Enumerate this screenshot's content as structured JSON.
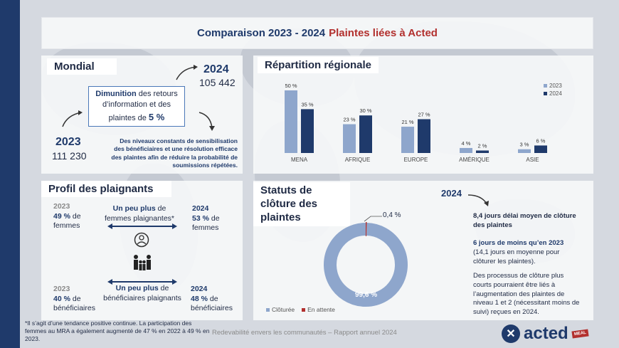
{
  "title": {
    "part1": "Comparaison 2023 - 2024",
    "part2": "Plaintes liées à Acted"
  },
  "mondial": {
    "heading": "Mondial",
    "year_2024": "2024",
    "count_2024": "105 442",
    "year_2023": "2023",
    "count_2023": "111 230",
    "box_bold": "Dimunition",
    "box_text": " des retours d’information et des plaintes de ",
    "box_pct": "5 %",
    "note": "Des niveaux constants de sensibilisation des bénéficiaires et une résolution efficace des plaintes afin de réduire la probabilité de soumissions répétées."
  },
  "regional": {
    "heading": "Répartition régionale",
    "legend_2023": "2023",
    "legend_2024": "2024"
  },
  "chart_data": {
    "type": "bar",
    "categories": [
      "MENA",
      "AFRIQUE",
      "EUROPE",
      "AMÉRIQUE",
      "ASIE"
    ],
    "series": [
      {
        "name": "2023",
        "values": [
          50,
          23,
          21,
          4,
          3
        ],
        "labels": [
          "50 %",
          "23 %",
          "21 %",
          "4 %",
          "3 %"
        ],
        "color": "#8ea6cc"
      },
      {
        "name": "2024",
        "values": [
          35,
          30,
          27,
          2,
          6
        ],
        "labels": [
          "35 %",
          "30 %",
          "27 %",
          "2 %",
          "6 %"
        ],
        "color": "#1f3a6b"
      }
    ],
    "ylim": [
      0,
      50
    ],
    "legend": "top-right"
  },
  "profil": {
    "heading": "Profil des plaignants",
    "women_2023_year": "2023",
    "women_2023_pct": "49 %",
    "women_2023_rest": " de femmes",
    "women_2024_year": "2024",
    "women_2024_pct": "53 %",
    "women_2024_rest": " de femmes",
    "women_mid_bold": "Un peu plus",
    "women_mid_rest": " de femmes plaignantes*",
    "benef_2023_year": "2023",
    "benef_2023_pct": "40 %",
    "benef_2023_rest": " de bénéficiaires",
    "benef_2024_year": "2024",
    "benef_2024_pct": "48 %",
    "benef_2024_rest": " de bénéficiaires",
    "benef_mid_bold": "Un peu plus",
    "benef_mid_rest": " de bénéficiaires plaignants"
  },
  "statuts": {
    "heading": "Statuts de clôture des plaintes",
    "pending_label": "0,4 %",
    "closed_label": "99,6 %",
    "legend_closed": "Clôturée",
    "legend_pending": "En attente",
    "color_closed": "#8ea6cc",
    "color_pending": "#b2302e",
    "year": "2024",
    "delay_bold": "8,4 jours délai moyen de clôture des plaintes",
    "less_bold": "6 jours de moins qu’en 2023",
    "less_rest": " (14,1 jours en moyenne pour clôturer les plaintes).",
    "process": "Des processus de clôture plus courts pourraient être liés à l’augmentation des plaintes de niveau 1 et 2 (nécessitant moins de suivi) reçues en 2024."
  },
  "closure_chart": {
    "type": "pie",
    "categories": [
      "Clôturée",
      "En attente"
    ],
    "values": [
      99.6,
      0.4
    ]
  },
  "footnote": "*Il s’agit d’une tendance positive continue. La participation des femmes au MRA a également augmenté de 47 % en 2022 à 49 % en 2023.",
  "footer": "Redevabilité envers les communautés – Rapport annuel  2024",
  "logo": {
    "text": "acted",
    "badge": "MEAL"
  }
}
